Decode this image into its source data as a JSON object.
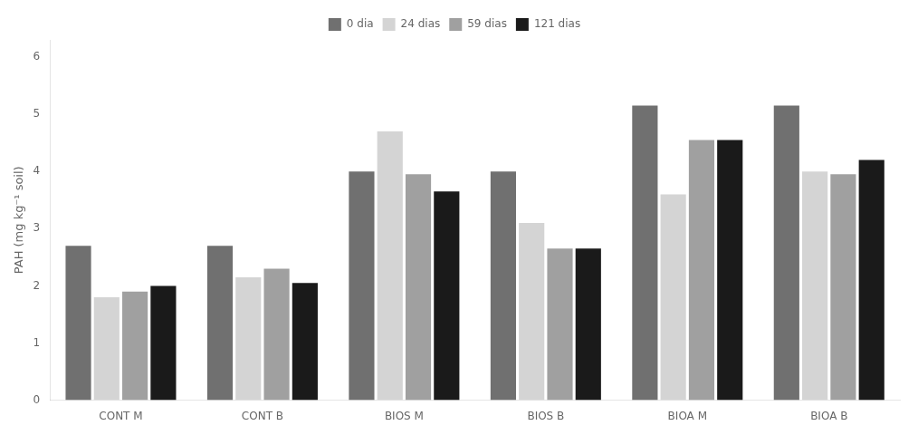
{
  "chart_data": {
    "type": "bar",
    "ylabel": "PAH (mg kg⁻¹ soil)",
    "categories": [
      "CONT M",
      "CONT B",
      "BIOS M",
      "BIOS B",
      "BIOA M",
      "BIOA B"
    ],
    "series": [
      {
        "name": "0 dia",
        "color": "#707070",
        "values": [
          2.7,
          2.7,
          4.0,
          4.0,
          5.15,
          5.15
        ]
      },
      {
        "name": "24 dias",
        "color": "#d4d4d4",
        "values": [
          1.8,
          2.15,
          4.7,
          3.1,
          3.6,
          4.0
        ]
      },
      {
        "name": "59 dias",
        "color": "#a0a0a0",
        "values": [
          1.9,
          2.3,
          3.95,
          2.65,
          4.55,
          3.95
        ]
      },
      {
        "name": "121 dias",
        "color": "#1a1a1a",
        "values": [
          2.0,
          2.05,
          3.65,
          2.65,
          4.55,
          4.2
        ]
      }
    ],
    "ylim": [
      0,
      6.3
    ],
    "yticks": [
      0,
      1,
      2,
      3,
      4,
      5,
      6
    ],
    "grid": false,
    "legend": "top"
  }
}
